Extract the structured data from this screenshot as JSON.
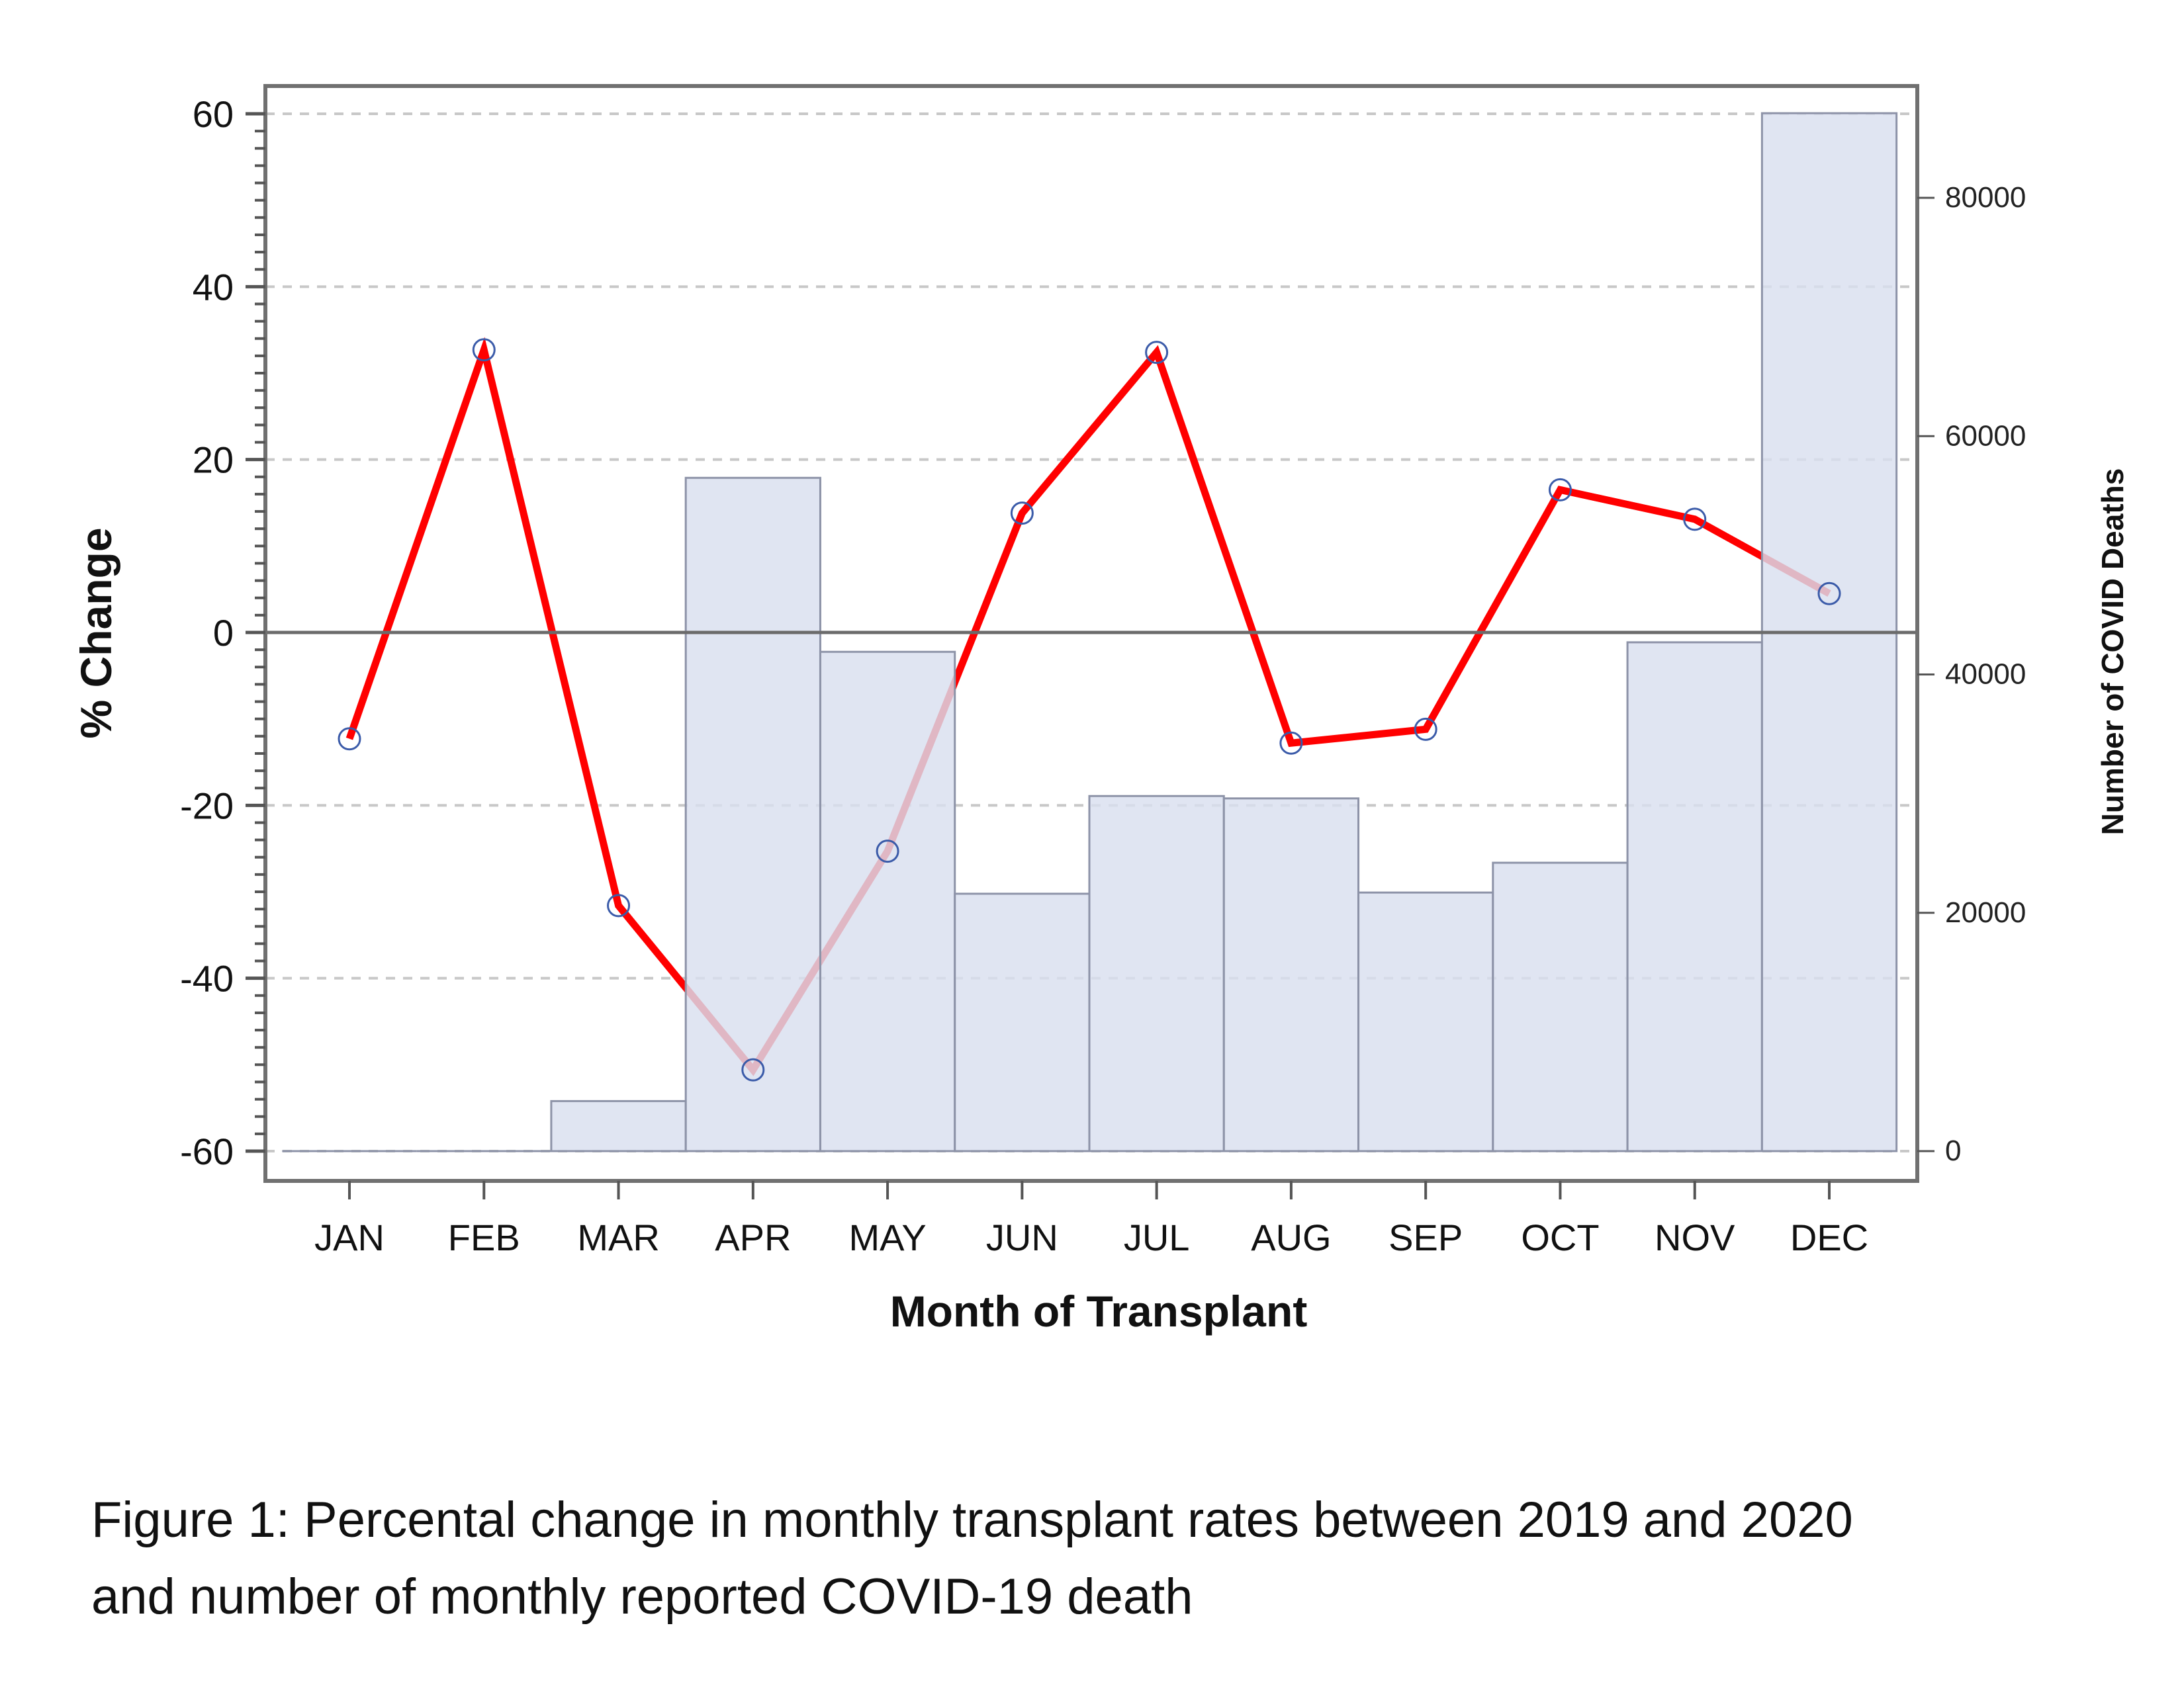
{
  "chart_data": {
    "type": "bar+line",
    "title": "",
    "xlabel": "Month of Transplant",
    "ylabel": "% Change",
    "y2label": "Number of COVID Deaths",
    "categories": [
      "JAN",
      "FEB",
      "MAR",
      "APR",
      "MAY",
      "JUN",
      "JUL",
      "AUG",
      "SEP",
      "OCT",
      "NOV",
      "DEC"
    ],
    "ylim": [
      -60,
      60
    ],
    "yticks": [
      -60,
      -40,
      -20,
      0,
      20,
      40,
      60
    ],
    "y2lim": [
      0,
      80000
    ],
    "y2ticks": [
      0,
      20000,
      40000,
      60000,
      80000
    ],
    "grid": true,
    "series": [
      {
        "name": "% Change in monthly transplant rates (2019 vs 2020)",
        "type": "line",
        "axis": "left",
        "color": "#ff0000",
        "marker_color": "#3b5ba9",
        "values": [
          -12.3,
          32.7,
          -31.6,
          -50.6,
          -25.3,
          13.8,
          32.4,
          -12.8,
          -11.2,
          16.5,
          13.1,
          4.5
        ]
      },
      {
        "name": "Number of COVID Deaths",
        "type": "bar",
        "axis": "right",
        "color": "#d9dfef",
        "edge_color": "#8d93a8",
        "values": [
          0,
          0,
          4200,
          56500,
          41900,
          21600,
          29800,
          29600,
          21700,
          24200,
          42700,
          87100
        ]
      }
    ]
  },
  "caption": {
    "line1": "Figure 1: Percental change in monthly transplant rates between 2019 and 2020",
    "line2": "and number of monthly reported COVID-19 death"
  }
}
